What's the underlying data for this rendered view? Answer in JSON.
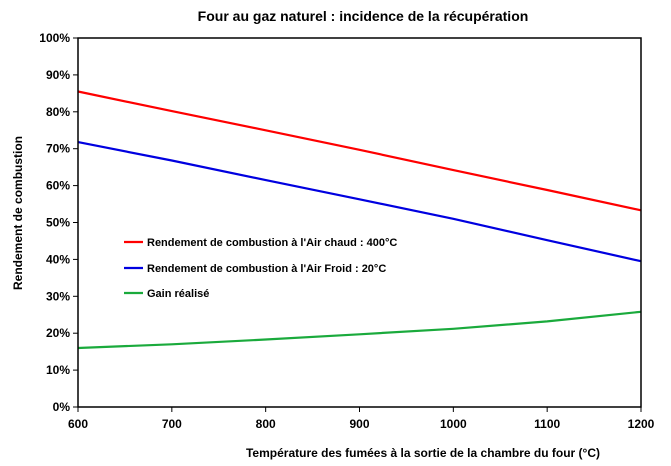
{
  "chart_data": {
    "type": "line",
    "title": "Four au gaz naturel : incidence de la récupération",
    "xlabel": "Température des fumées à la sortie de la chambre du four (°C)",
    "ylabel": "Rendement de combustion",
    "xlim": [
      600,
      1200
    ],
    "ylim": [
      0,
      100
    ],
    "x_ticks": [
      600,
      700,
      800,
      900,
      1000,
      1100,
      1200
    ],
    "y_ticks": [
      "0%",
      "10%",
      "20%",
      "30%",
      "40%",
      "50%",
      "60%",
      "70%",
      "80%",
      "90%",
      "100%"
    ],
    "grid": false,
    "legend_position": "left-middle",
    "series": [
      {
        "name": "Rendement de combustion à l'Air chaud : 400°C",
        "color": "#ff0000",
        "x": [
          600,
          700,
          800,
          900,
          1000,
          1100,
          1200
        ],
        "values": [
          85.5,
          80.2,
          75.0,
          69.7,
          64.2,
          58.8,
          53.3
        ]
      },
      {
        "name": "Rendement de combustion à l'Air Froid : 20°C",
        "color": "#0000e0",
        "x": [
          600,
          700,
          800,
          900,
          1000,
          1100,
          1200
        ],
        "values": [
          71.8,
          66.8,
          61.5,
          56.3,
          51.0,
          45.2,
          39.5
        ]
      },
      {
        "name": "Gain réalisé",
        "color": "#1aaa3c",
        "x": [
          600,
          700,
          800,
          900,
          1000,
          1100,
          1200
        ],
        "values": [
          16.0,
          17.0,
          18.3,
          19.7,
          21.2,
          23.2,
          25.8
        ]
      }
    ]
  }
}
